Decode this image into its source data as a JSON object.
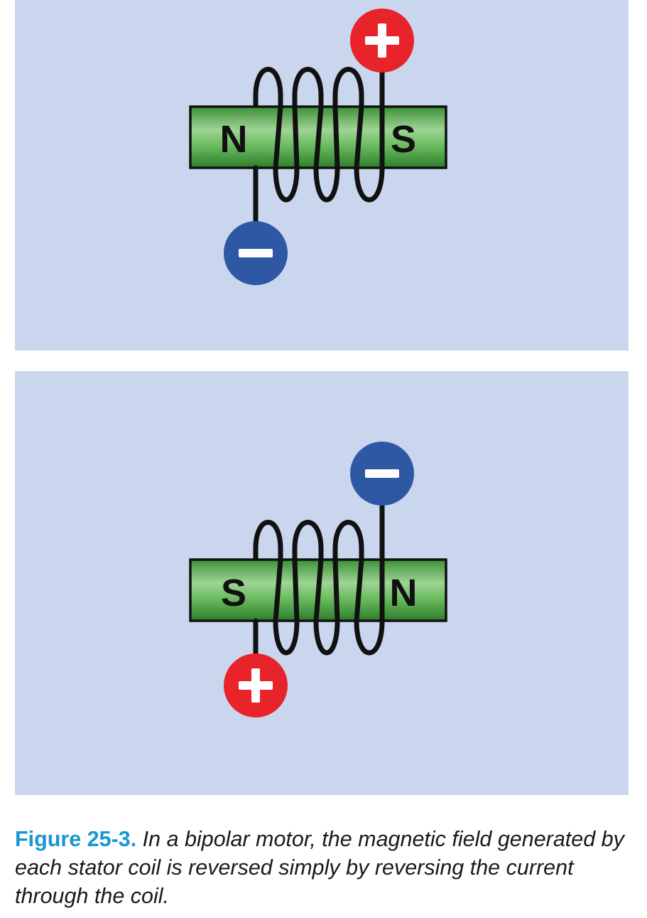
{
  "colors": {
    "panel_background": "#c9d6ee",
    "core_green": "#4fae47",
    "positive_terminal": "#e8232a",
    "negative_terminal": "#2e57a4",
    "figure_label": "#1a96d2"
  },
  "diagrams": [
    {
      "left_pole": "N",
      "right_pole": "S",
      "top_terminal": "+",
      "bottom_terminal": "−",
      "top_terminal_icon": "plus-icon",
      "bottom_terminal_icon": "minus-icon"
    },
    {
      "left_pole": "S",
      "right_pole": "N",
      "top_terminal": "−",
      "bottom_terminal": "+",
      "top_terminal_icon": "minus-icon",
      "bottom_terminal_icon": "plus-icon"
    }
  ],
  "caption": {
    "label": "Figure 25-3.",
    "text": " In a bipolar motor, the magnetic field generated by each stator coil is reversed simply by reversing the current through the coil."
  }
}
